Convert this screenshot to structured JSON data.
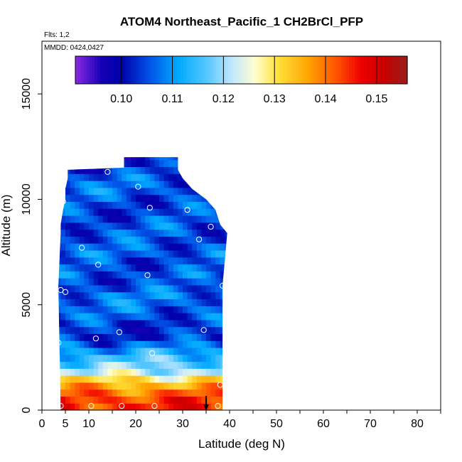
{
  "chart_data": {
    "type": "heatmap",
    "title": "ATOM4 Northeast_Pacific_1 CH2BrCl_PFP",
    "annotations": {
      "flights": "Flts: 1,2",
      "dates": "MMDD: 0424,0427"
    },
    "xlabel": "Latitude (deg N)",
    "ylabel": "Altitude (m)",
    "xlim": [
      0,
      85
    ],
    "ylim": [
      0,
      17500
    ],
    "x_ticks": [
      0,
      5,
      10,
      20,
      30,
      40,
      50,
      60,
      70,
      80
    ],
    "y_ticks": [
      0,
      5000,
      10000,
      15000
    ],
    "colorbar": {
      "min": 0.091,
      "max": 0.156,
      "ticks": [
        0.1,
        0.11,
        0.12,
        0.13,
        0.14,
        0.15
      ],
      "tick_labels": [
        "0.10",
        "0.11",
        "0.12",
        "0.13",
        "0.14",
        "0.15"
      ]
    },
    "field_profile": [
      {
        "alt": 0,
        "value": 0.145
      },
      {
        "alt": 400,
        "value": 0.145
      },
      {
        "alt": 900,
        "value": 0.14
      },
      {
        "alt": 1400,
        "value": 0.132
      },
      {
        "alt": 1900,
        "value": 0.12
      },
      {
        "alt": 2400,
        "value": 0.116
      },
      {
        "alt": 2900,
        "value": 0.11
      },
      {
        "alt": 3400,
        "value": 0.103
      },
      {
        "alt": 4000,
        "value": 0.103
      },
      {
        "alt": 4500,
        "value": 0.106
      },
      {
        "alt": 5000,
        "value": 0.107
      },
      {
        "alt": 5500,
        "value": 0.108
      },
      {
        "alt": 6000,
        "value": 0.104
      },
      {
        "alt": 6500,
        "value": 0.106
      },
      {
        "alt": 7000,
        "value": 0.104
      },
      {
        "alt": 7500,
        "value": 0.107
      },
      {
        "alt": 8000,
        "value": 0.105
      },
      {
        "alt": 8500,
        "value": 0.106
      },
      {
        "alt": 9000,
        "value": 0.105
      },
      {
        "alt": 9500,
        "value": 0.104
      },
      {
        "alt": 10000,
        "value": 0.105
      },
      {
        "alt": 10500,
        "value": 0.107
      },
      {
        "alt": 11000,
        "value": 0.106
      },
      {
        "alt": 11500,
        "value": 0.103
      },
      {
        "alt": 12000,
        "value": 0.101
      }
    ],
    "field_extent": [
      {
        "alt": 0,
        "lat_min": 4,
        "lat_max": 38.5
      },
      {
        "alt": 5900,
        "lat_min": 3.5,
        "lat_max": 38.5
      },
      {
        "alt": 8400,
        "lat_min": 4,
        "lat_max": 39.5
      },
      {
        "alt": 8800,
        "lat_min": 4,
        "lat_max": 38
      },
      {
        "alt": 9500,
        "lat_min": 4.5,
        "lat_max": 37
      },
      {
        "alt": 10000,
        "lat_min": 5,
        "lat_max": 35
      },
      {
        "alt": 10500,
        "lat_min": 5,
        "lat_max": 32
      },
      {
        "alt": 11000,
        "lat_min": 5.5,
        "lat_max": 30
      },
      {
        "alt": 11400,
        "lat_min": 5.5,
        "lat_max": 29
      },
      {
        "alt": 11500,
        "lat_min": 17.5,
        "lat_max": 29
      },
      {
        "alt": 12000,
        "lat_min": 17.5,
        "lat_max": 29
      }
    ],
    "samples": [
      {
        "lat": 4,
        "alt": 200
      },
      {
        "lat": 10.5,
        "alt": 200
      },
      {
        "lat": 17,
        "alt": 200
      },
      {
        "lat": 24,
        "alt": 200
      },
      {
        "lat": 37.5,
        "alt": 200
      },
      {
        "lat": 38,
        "alt": 1200
      },
      {
        "lat": 23.5,
        "alt": 2700
      },
      {
        "lat": 3.5,
        "alt": 3200
      },
      {
        "lat": 11.5,
        "alt": 3400
      },
      {
        "lat": 16.5,
        "alt": 3700
      },
      {
        "lat": 34.5,
        "alt": 3800
      },
      {
        "lat": 4,
        "alt": 5700
      },
      {
        "lat": 5,
        "alt": 5600
      },
      {
        "lat": 38.5,
        "alt": 5900
      },
      {
        "lat": 22.5,
        "alt": 6400
      },
      {
        "lat": 12,
        "alt": 6900
      },
      {
        "lat": 8.5,
        "alt": 7700
      },
      {
        "lat": 33.5,
        "alt": 8100
      },
      {
        "lat": 36,
        "alt": 8700
      },
      {
        "lat": 31,
        "alt": 9500
      },
      {
        "lat": 23,
        "alt": 9600
      },
      {
        "lat": 4.5,
        "alt": 9900
      },
      {
        "lat": 20.5,
        "alt": 10600
      },
      {
        "lat": 14,
        "alt": 11300
      }
    ],
    "marker": {
      "lat": 35,
      "alt": 0
    }
  }
}
